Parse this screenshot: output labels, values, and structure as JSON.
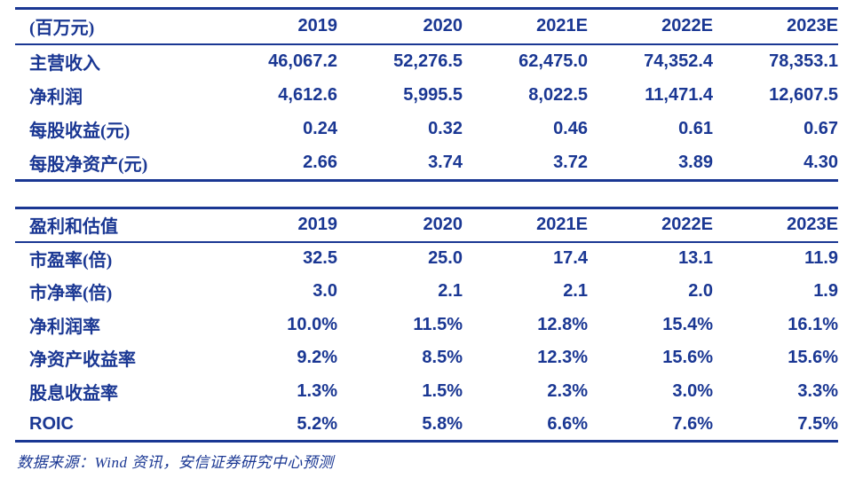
{
  "colors": {
    "navy": "#1a3793",
    "background": "#ffffff"
  },
  "table1": {
    "header": [
      "(百万元)",
      "2019",
      "2020",
      "2021E",
      "2022E",
      "2023E"
    ],
    "rows": [
      {
        "label": "主营收入",
        "values": [
          "46,067.2",
          "52,276.5",
          "62,475.0",
          "74,352.4",
          "78,353.1"
        ]
      },
      {
        "label": "净利润",
        "values": [
          "4,612.6",
          "5,995.5",
          "8,022.5",
          "11,471.4",
          "12,607.5"
        ]
      },
      {
        "label": "每股收益(元)",
        "values": [
          "0.24",
          "0.32",
          "0.46",
          "0.61",
          "0.67"
        ]
      },
      {
        "label": "每股净资产(元)",
        "values": [
          "2.66",
          "3.74",
          "3.72",
          "3.89",
          "4.30"
        ]
      }
    ]
  },
  "table2": {
    "header": [
      "盈利和估值",
      "2019",
      "2020",
      "2021E",
      "2022E",
      "2023E"
    ],
    "rows": [
      {
        "label": "市盈率(倍)",
        "values": [
          "32.5",
          "25.0",
          "17.4",
          "13.1",
          "11.9"
        ]
      },
      {
        "label": "市净率(倍)",
        "values": [
          "3.0",
          "2.1",
          "2.1",
          "2.0",
          "1.9"
        ]
      },
      {
        "label": "净利润率",
        "values": [
          "10.0%",
          "11.5%",
          "12.8%",
          "15.4%",
          "16.1%"
        ]
      },
      {
        "label": "净资产收益率",
        "values": [
          "9.2%",
          "8.5%",
          "12.3%",
          "15.6%",
          "15.6%"
        ]
      },
      {
        "label": "股息收益率",
        "values": [
          "1.3%",
          "1.5%",
          "2.3%",
          "3.0%",
          "3.3%"
        ]
      },
      {
        "label": "ROIC",
        "values": [
          "5.2%",
          "5.8%",
          "6.6%",
          "7.6%",
          "7.5%"
        ]
      }
    ]
  },
  "footer": {
    "source": "数据来源：Wind 资讯，安信证券研究中心预测"
  }
}
